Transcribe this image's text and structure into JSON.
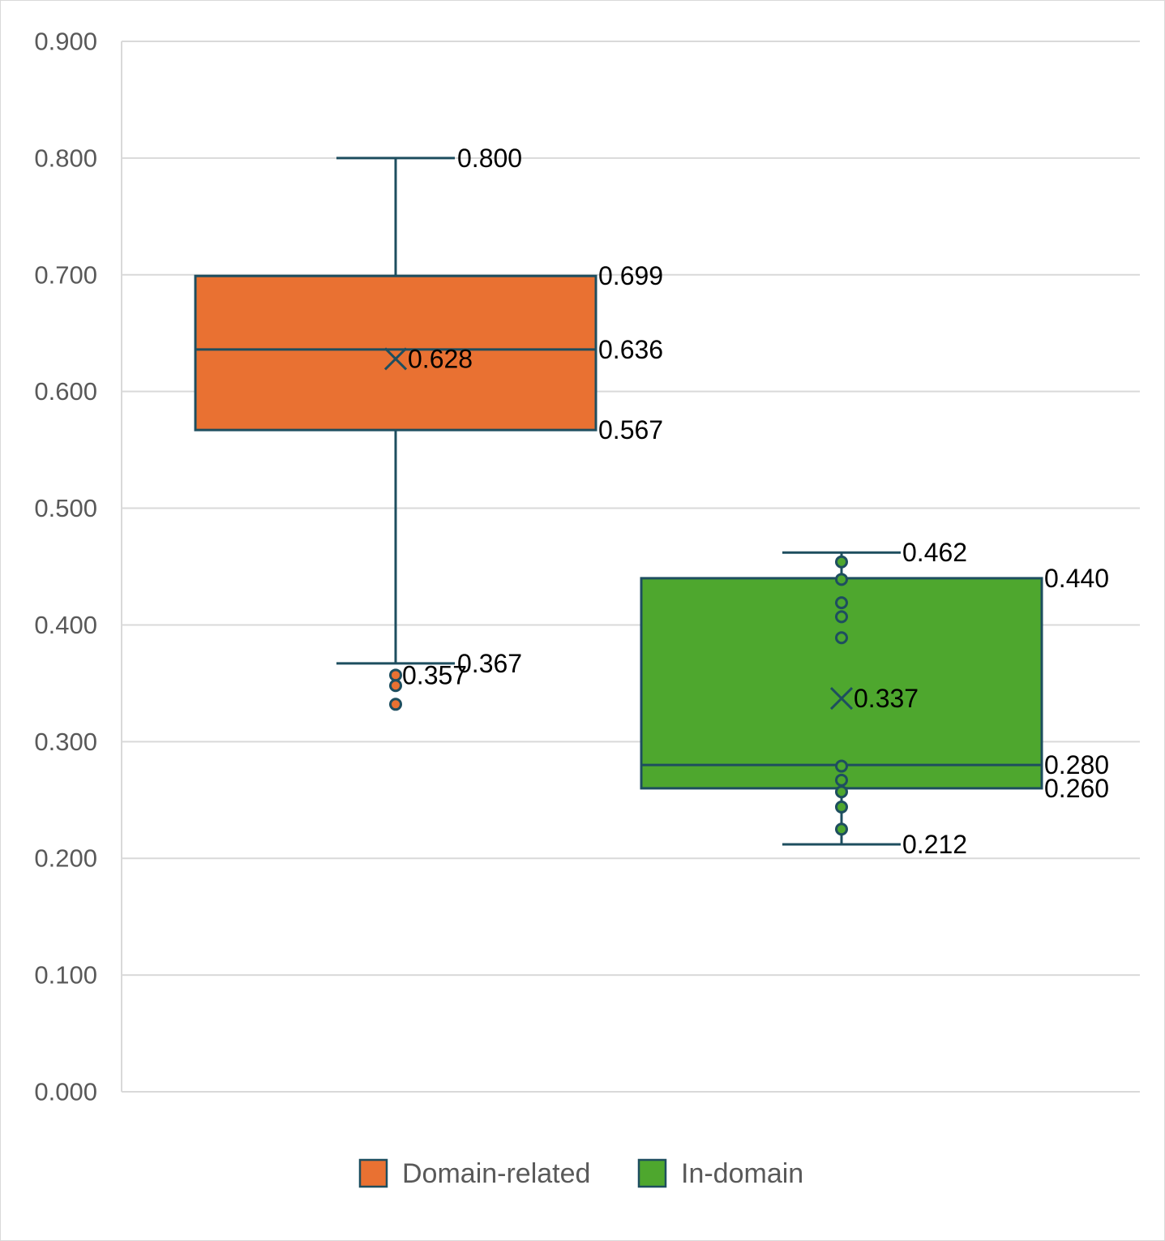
{
  "chart_data": {
    "type": "box",
    "ylim": [
      0,
      0.9
    ],
    "yticks": [
      "0.000",
      "0.100",
      "0.200",
      "0.300",
      "0.400",
      "0.500",
      "0.600",
      "0.700",
      "0.800",
      "0.900"
    ],
    "grid": true,
    "legend_position": "bottom",
    "series": [
      {
        "name": "Domain-related",
        "color": "#E97132",
        "whisker_max": 0.8,
        "q3": 0.699,
        "median": 0.636,
        "mean": 0.628,
        "q1": 0.567,
        "whisker_min": 0.367,
        "outliers": [
          0.357,
          0.348,
          0.332
        ],
        "labels": {
          "whisker_max": "0.800",
          "q3": "0.699",
          "median": "0.636",
          "mean": "0.628",
          "q1": "0.567",
          "whisker_min": "0.367",
          "outlier": "0.357"
        }
      },
      {
        "name": "In-domain",
        "color": "#4EA72E",
        "whisker_max": 0.462,
        "q3": 0.44,
        "median": 0.28,
        "mean": 0.337,
        "q1": 0.26,
        "whisker_min": 0.212,
        "points": [
          0.454,
          0.439,
          0.419,
          0.407,
          0.389,
          0.279,
          0.267,
          0.257,
          0.244,
          0.225
        ],
        "labels": {
          "whisker_max": "0.462",
          "q3": "0.440",
          "median": "0.280",
          "mean": "0.337",
          "q1": "0.260",
          "whisker_min": "0.212"
        }
      }
    ]
  }
}
